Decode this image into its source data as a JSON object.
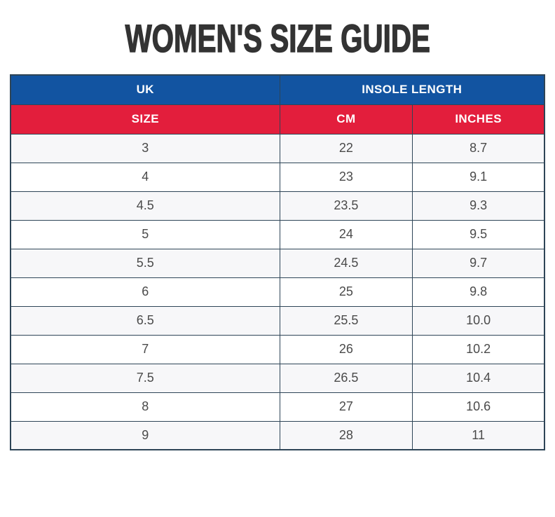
{
  "page": {
    "title": "WOMEN'S SIZE GUIDE"
  },
  "size_table": {
    "group_headers": [
      {
        "label": "UK",
        "colspan": 1
      },
      {
        "label": "INSOLE LENGTH",
        "colspan": 2
      }
    ],
    "column_headers": [
      {
        "label": "SIZE"
      },
      {
        "label": "CM"
      },
      {
        "label": "INCHES"
      }
    ],
    "rows": [
      [
        "3",
        "22",
        "8.7"
      ],
      [
        "4",
        "23",
        "9.1"
      ],
      [
        "4.5",
        "23.5",
        "9.3"
      ],
      [
        "5",
        "24",
        "9.5"
      ],
      [
        "5.5",
        "24.5",
        "9.7"
      ],
      [
        "6",
        "25",
        "9.8"
      ],
      [
        "6.5",
        "25.5",
        "10.0"
      ],
      [
        "7",
        "26",
        "10.2"
      ],
      [
        "7.5",
        "26.5",
        "10.4"
      ],
      [
        "8",
        "27",
        "10.6"
      ],
      [
        "9",
        "28",
        "11"
      ]
    ]
  },
  "chart_data": {
    "type": "table",
    "title": "WOMEN'S SIZE GUIDE",
    "column_groups": [
      "UK",
      "INSOLE LENGTH"
    ],
    "columns": [
      "UK SIZE",
      "CM",
      "INCHES"
    ],
    "rows": [
      [
        3,
        22,
        8.7
      ],
      [
        4,
        23,
        9.1
      ],
      [
        4.5,
        23.5,
        9.3
      ],
      [
        5,
        24,
        9.5
      ],
      [
        5.5,
        24.5,
        9.7
      ],
      [
        6,
        25,
        9.8
      ],
      [
        6.5,
        25.5,
        10.0
      ],
      [
        7,
        26,
        10.2
      ],
      [
        7.5,
        26.5,
        10.4
      ],
      [
        8,
        27,
        10.6
      ],
      [
        9,
        28,
        11
      ]
    ]
  },
  "colors": {
    "header_blue": "#1254a1",
    "header_red": "#e31e3c",
    "border": "#2e4557",
    "alt_row": "#f7f7f9",
    "title_text": "#333333",
    "cell_text": "#4a4a4a",
    "header_text": "#ffffff"
  }
}
